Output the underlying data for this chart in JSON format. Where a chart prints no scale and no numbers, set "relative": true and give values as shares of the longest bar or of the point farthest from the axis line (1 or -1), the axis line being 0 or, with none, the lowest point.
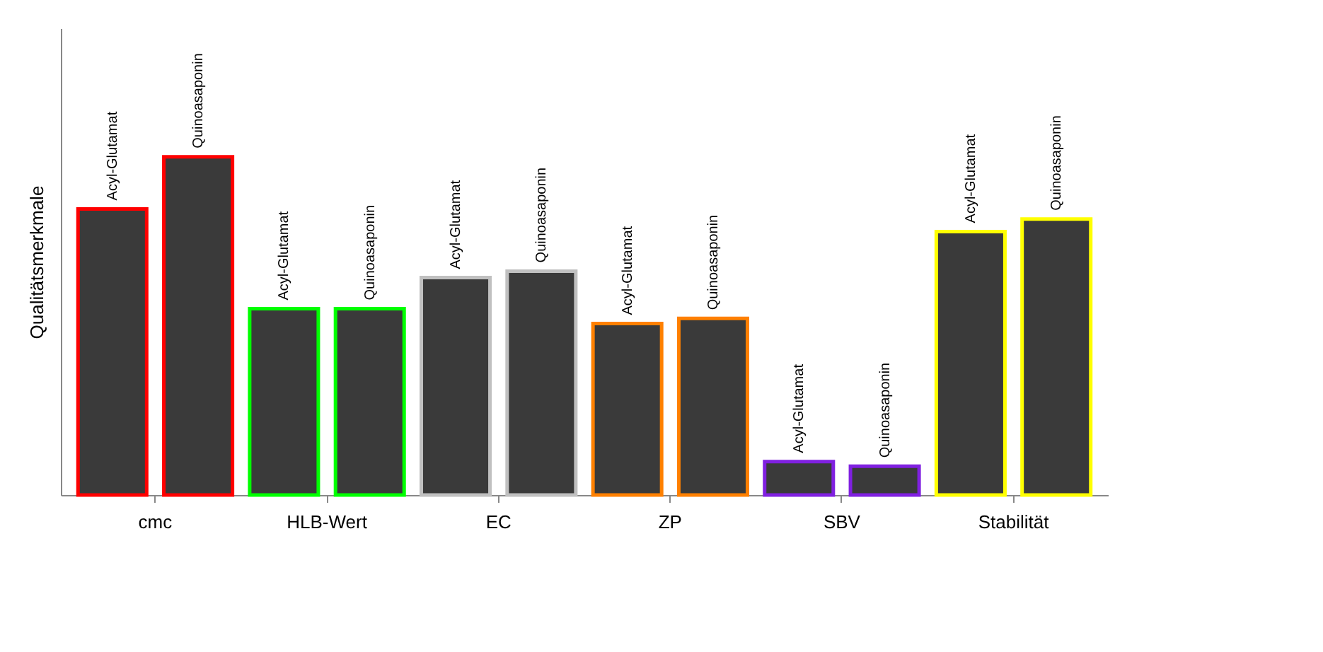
{
  "chart_data": {
    "type": "bar",
    "relative": true,
    "ylabel": "Qualitätsmerkmale",
    "categories": [
      "cmc",
      "HLB-Wert",
      "EC",
      "ZP",
      "SBV",
      "Stabilität"
    ],
    "series": [
      {
        "name": "Acyl-Glutamat",
        "colors": [
          "#ff0000",
          "#00ff00",
          "#c0c0c0",
          "#ff8000",
          "#8020e0",
          "#ffff00"
        ],
        "values": [
          0.846,
          0.551,
          0.643,
          0.507,
          0.099,
          0.779
        ]
      },
      {
        "name": "Quinoasaponin",
        "colors": [
          "#ff0000",
          "#00ff00",
          "#c0c0c0",
          "#ff8000",
          "#8020e0",
          "#ffff00"
        ],
        "values": [
          1,
          0.551,
          0.662,
          0.522,
          0.085,
          0.816
        ]
      }
    ],
    "grid": false
  }
}
